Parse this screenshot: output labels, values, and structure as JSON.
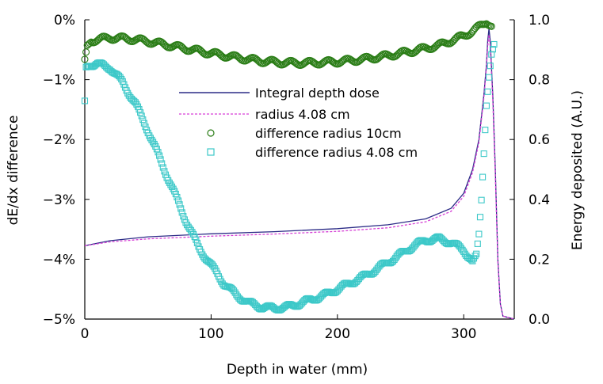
{
  "chart_data": {
    "type": "line",
    "title": "",
    "xlabel": "Depth in water (mm)",
    "ylabel_left": "dE/dx difference",
    "ylabel_right": "Energy deposited (A.U.)",
    "xlim": [
      0,
      340
    ],
    "ylim_left": [
      -5,
      0
    ],
    "ylim_right": [
      0,
      1.0
    ],
    "x_ticks": [
      0,
      100,
      200,
      300
    ],
    "x_tick_labels": [
      "0",
      "100",
      "200",
      "300"
    ],
    "y_left_ticks": [
      0,
      -1,
      -2,
      -3,
      -4,
      -5
    ],
    "y_left_tick_labels": [
      "0%",
      "−1%",
      "−2%",
      "−3%",
      "−4%",
      "−5%"
    ],
    "y_right_ticks": [
      1.0,
      0.8,
      0.6,
      0.4,
      0.2,
      0.0
    ],
    "y_right_tick_labels": [
      "1.0",
      "0.8",
      "0.6",
      "0.4",
      "0.2",
      "0.0"
    ],
    "grid": false,
    "legend_position": "center",
    "series": [
      {
        "name": "Integral depth dose",
        "kind": "line",
        "axis": "right",
        "style": "solid",
        "color": "#2b2b86",
        "points": [
          [
            0,
            0.245
          ],
          [
            20,
            0.262
          ],
          [
            50,
            0.275
          ],
          [
            100,
            0.285
          ],
          [
            150,
            0.292
          ],
          [
            200,
            0.302
          ],
          [
            240,
            0.315
          ],
          [
            270,
            0.335
          ],
          [
            290,
            0.37
          ],
          [
            300,
            0.42
          ],
          [
            307,
            0.5
          ],
          [
            312,
            0.6
          ],
          [
            316,
            0.75
          ],
          [
            318,
            0.85
          ],
          [
            319,
            0.93
          ],
          [
            320,
            0.97
          ],
          [
            321,
            0.93
          ],
          [
            323,
            0.75
          ],
          [
            325,
            0.5
          ],
          [
            327,
            0.2
          ],
          [
            329,
            0.05
          ],
          [
            331,
            0.01
          ],
          [
            340,
            0.0
          ]
        ]
      },
      {
        "name": "radius 4.08 cm",
        "kind": "line",
        "axis": "right",
        "style": "dashed",
        "color": "#d63fd6",
        "points": [
          [
            0,
            0.245
          ],
          [
            20,
            0.258
          ],
          [
            50,
            0.268
          ],
          [
            100,
            0.277
          ],
          [
            150,
            0.284
          ],
          [
            200,
            0.293
          ],
          [
            240,
            0.305
          ],
          [
            270,
            0.325
          ],
          [
            290,
            0.36
          ],
          [
            300,
            0.41
          ],
          [
            307,
            0.49
          ],
          [
            312,
            0.59
          ],
          [
            316,
            0.74
          ],
          [
            318,
            0.84
          ],
          [
            319,
            0.91
          ],
          [
            320,
            0.95
          ],
          [
            321,
            0.91
          ],
          [
            323,
            0.73
          ],
          [
            325,
            0.48
          ],
          [
            327,
            0.19
          ],
          [
            329,
            0.05
          ],
          [
            331,
            0.01
          ],
          [
            340,
            0.0
          ]
        ]
      },
      {
        "name": "difference radius 10cm",
        "kind": "scatter",
        "axis": "left",
        "marker": "circle",
        "color": "#2a7d16",
        "points": [
          [
            0,
            -0.7
          ],
          [
            2,
            -0.45
          ],
          [
            5,
            -0.35
          ],
          [
            10,
            -0.33
          ],
          [
            20,
            -0.3
          ],
          [
            30,
            -0.31
          ],
          [
            40,
            -0.33
          ],
          [
            50,
            -0.36
          ],
          [
            60,
            -0.4
          ],
          [
            80,
            -0.48
          ],
          [
            100,
            -0.56
          ],
          [
            120,
            -0.63
          ],
          [
            140,
            -0.69
          ],
          [
            160,
            -0.72
          ],
          [
            180,
            -0.72
          ],
          [
            200,
            -0.7
          ],
          [
            220,
            -0.66
          ],
          [
            240,
            -0.6
          ],
          [
            260,
            -0.52
          ],
          [
            280,
            -0.43
          ],
          [
            300,
            -0.27
          ],
          [
            310,
            -0.15
          ],
          [
            315,
            -0.08
          ],
          [
            318,
            -0.03
          ],
          [
            320,
            -0.06
          ],
          [
            322,
            -0.1
          ]
        ]
      },
      {
        "name": "difference radius 4.08 cm",
        "kind": "scatter",
        "axis": "left",
        "marker": "square",
        "color": "#3cc8c8",
        "points": [
          [
            0,
            -1.38
          ],
          [
            1,
            -0.8
          ],
          [
            3,
            -0.75
          ],
          [
            10,
            -0.74
          ],
          [
            20,
            -0.8
          ],
          [
            30,
            -1.05
          ],
          [
            40,
            -1.4
          ],
          [
            50,
            -1.85
          ],
          [
            60,
            -2.35
          ],
          [
            70,
            -2.85
          ],
          [
            80,
            -3.35
          ],
          [
            90,
            -3.8
          ],
          [
            100,
            -4.1
          ],
          [
            110,
            -4.4
          ],
          [
            120,
            -4.6
          ],
          [
            130,
            -4.73
          ],
          [
            140,
            -4.8
          ],
          [
            150,
            -4.82
          ],
          [
            160,
            -4.8
          ],
          [
            170,
            -4.74
          ],
          [
            180,
            -4.67
          ],
          [
            190,
            -4.6
          ],
          [
            200,
            -4.5
          ],
          [
            210,
            -4.4
          ],
          [
            220,
            -4.3
          ],
          [
            230,
            -4.18
          ],
          [
            240,
            -4.05
          ],
          [
            250,
            -3.92
          ],
          [
            260,
            -3.78
          ],
          [
            270,
            -3.68
          ],
          [
            280,
            -3.66
          ],
          [
            290,
            -3.72
          ],
          [
            300,
            -3.85
          ],
          [
            305,
            -3.98
          ],
          [
            307,
            -4.05
          ],
          [
            310,
            -3.95
          ],
          [
            312,
            -3.6
          ],
          [
            314,
            -3.0
          ],
          [
            316,
            -2.2
          ],
          [
            318,
            -1.4
          ],
          [
            320,
            -0.95
          ],
          [
            322,
            -0.6
          ],
          [
            324,
            -0.45
          ]
        ]
      }
    ]
  }
}
